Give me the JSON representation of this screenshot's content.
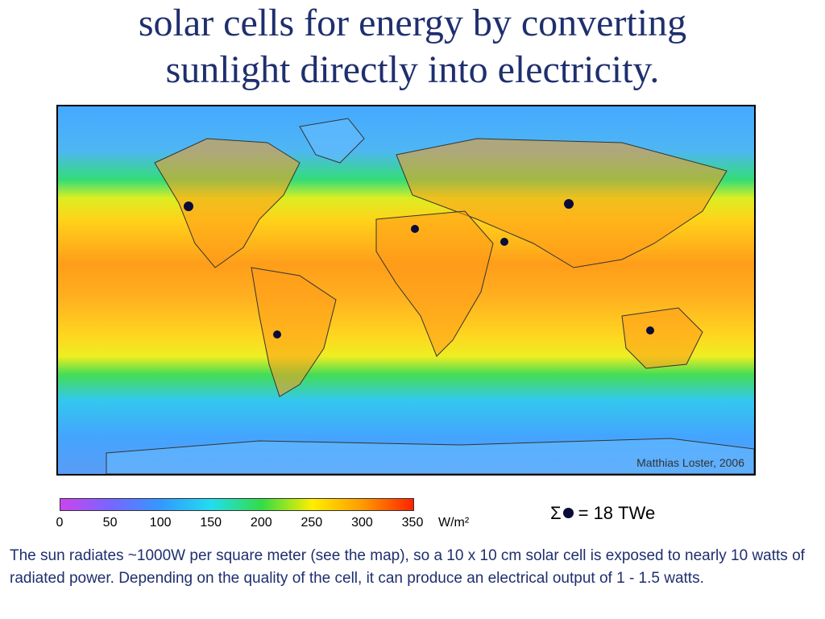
{
  "title": {
    "line1": "solar cells for energy by converting",
    "line2": "sunlight directly into electricity."
  },
  "map": {
    "credit": "Matthias Loster, 2006",
    "site_marker_color": "#0b0b3a",
    "site_count": 6
  },
  "legend": {
    "ticks": [
      "0",
      "50",
      "100",
      "150",
      "200",
      "250",
      "300",
      "350"
    ],
    "unit": "W/m²",
    "range": [
      0,
      350
    ],
    "colors": [
      "#cc44ee",
      "#7766ff",
      "#3399ff",
      "#22ddee",
      "#33dd44",
      "#ffee00",
      "#ff9900",
      "#ff2200"
    ],
    "sum_prefix": "Σ",
    "sum_value": "= 18 TWe"
  },
  "caption": "The sun radiates ~1000W per square meter (see the map), so a 10 x 10 cm solar cell is exposed to nearly 10 watts of radiated power. Depending on the quality of the cell, it can produce an electrical output of 1 - 1.5 watts."
}
